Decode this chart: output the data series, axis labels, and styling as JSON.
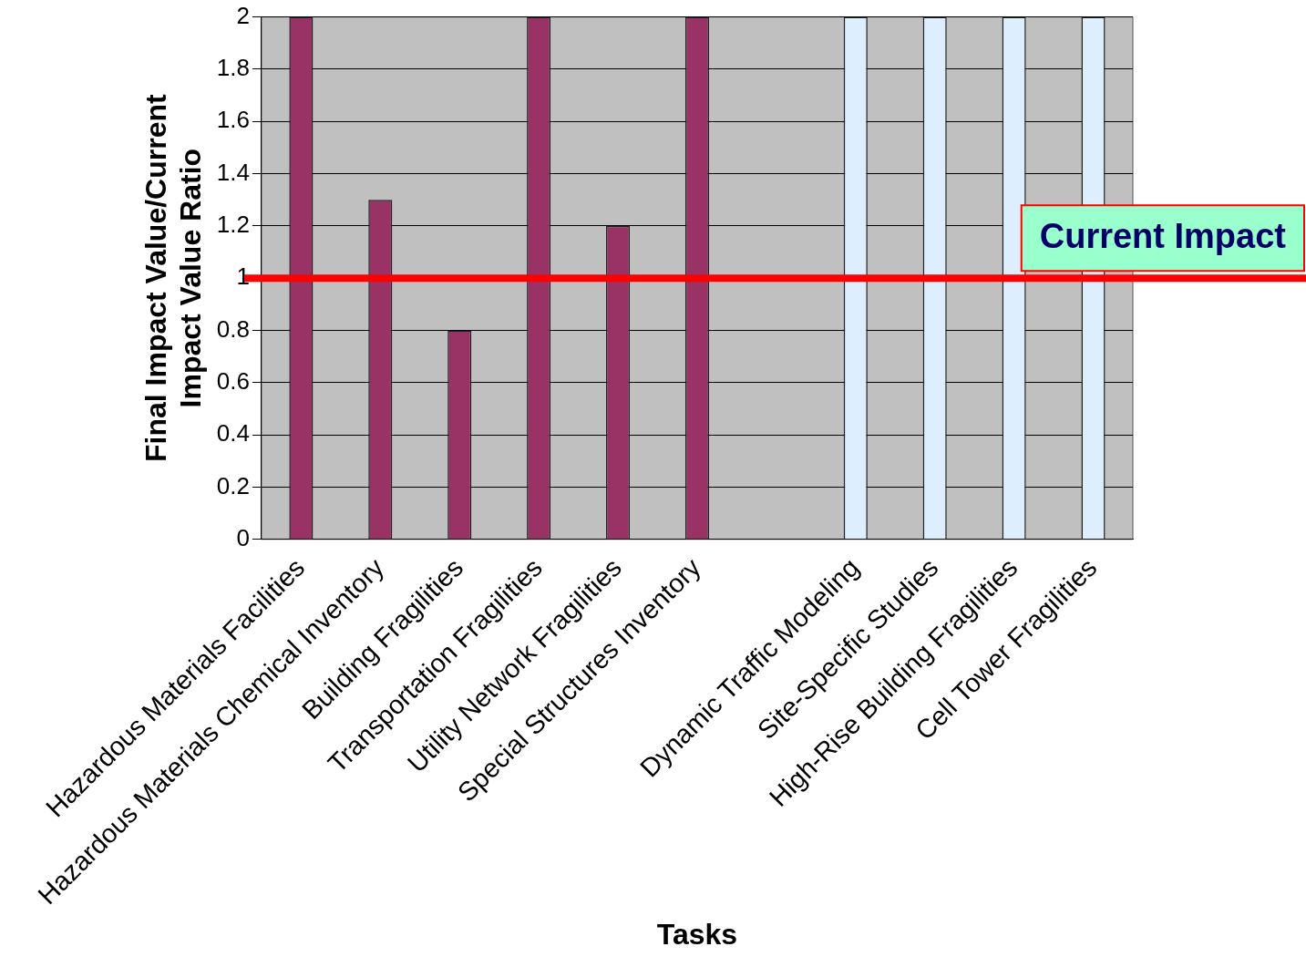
{
  "chart_data": {
    "type": "bar",
    "xlabel": "Tasks",
    "ylabel": "Final Impact Value/Current Impact Value Ratio",
    "categories": [
      "Hazardous Materials Facilities",
      "Hazardous Materials Chemical Inventory",
      "Building Fragilities",
      "Transportation Fragilities",
      "Utility Network Fragilities",
      "Special Structures Inventory",
      null,
      "Dynamic Traffic Modeling",
      "Site-Specific Studies",
      "High-Rise Building Fragilities",
      "Cell Tower Fragilities"
    ],
    "values": [
      2,
      1.3,
      0.8,
      2,
      1.2,
      2,
      null,
      2,
      2,
      2,
      2
    ],
    "colors": [
      "#993366",
      "#993366",
      "#993366",
      "#993366",
      "#993366",
      "#993366",
      "#993366",
      "#ddeeff",
      "#ddeeff",
      "#ddeeff",
      "#ddeeff"
    ],
    "ylim": [
      0,
      2
    ],
    "yticks": [
      0,
      0.2,
      0.4,
      0.6,
      0.8,
      1,
      1.2,
      1.4,
      1.6,
      1.8,
      2
    ],
    "grid": "y",
    "legend": false,
    "ref_lines": [
      {
        "axis": "y",
        "value": 1,
        "label": "Current Impact",
        "color": "#ff0000"
      }
    ]
  }
}
